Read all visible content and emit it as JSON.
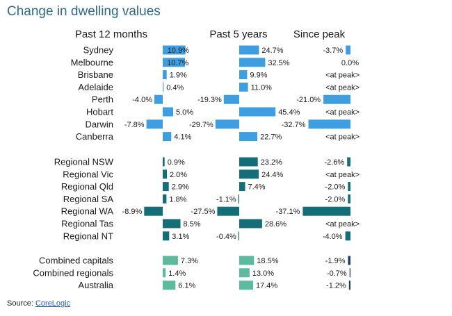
{
  "chart_data": {
    "type": "bar",
    "title": "Change in dwelling values",
    "series": [
      {
        "name": "Past 12 months"
      },
      {
        "name": "Past 5 years"
      },
      {
        "name": "Since peak"
      }
    ],
    "colors": {
      "capitals": "#3e9ee2",
      "regionals": "#146e78",
      "combined": "#5dbb9d",
      "since_peak_combined": "#1e3a6b"
    },
    "groups": [
      {
        "id": "capitals",
        "rows": [
          {
            "name": "Sydney",
            "v1": 10.9,
            "l1": "10.9%",
            "v2": 24.7,
            "l2": "24.7%",
            "v3": -3.7,
            "l3": "-3.7%"
          },
          {
            "name": "Melbourne",
            "v1": 10.7,
            "l1": "10.7%",
            "v2": 32.5,
            "l2": "32.5%",
            "v3": 0.0,
            "l3": "0.0%"
          },
          {
            "name": "Brisbane",
            "v1": 1.9,
            "l1": "1.9%",
            "v2": 9.9,
            "l2": "9.9%",
            "v3": null,
            "l3": "<at peak>"
          },
          {
            "name": "Adelaide",
            "v1": 0.4,
            "l1": "0.4%",
            "v2": 11.0,
            "l2": "11.0%",
            "v3": null,
            "l3": "<at peak>"
          },
          {
            "name": "Perth",
            "v1": -4.0,
            "l1": "-4.0%",
            "v2": -19.3,
            "l2": "-19.3%",
            "v3": -21.0,
            "l3": "-21.0%"
          },
          {
            "name": "Hobart",
            "v1": 5.0,
            "l1": "5.0%",
            "v2": 45.4,
            "l2": "45.4%",
            "v3": null,
            "l3": "<at peak>"
          },
          {
            "name": "Darwin",
            "v1": -7.8,
            "l1": "-7.8%",
            "v2": -29.7,
            "l2": "-29.7%",
            "v3": -32.7,
            "l3": "-32.7%"
          },
          {
            "name": "Canberra",
            "v1": 4.1,
            "l1": "4.1%",
            "v2": 22.7,
            "l2": "22.7%",
            "v3": null,
            "l3": "<at peak>"
          }
        ]
      },
      {
        "id": "regionals",
        "rows": [
          {
            "name": "Regional NSW",
            "v1": 0.9,
            "l1": "0.9%",
            "v2": 23.2,
            "l2": "23.2%",
            "v3": -2.6,
            "l3": "-2.6%"
          },
          {
            "name": "Regional Vic",
            "v1": 2.0,
            "l1": "2.0%",
            "v2": 24.4,
            "l2": "24.4%",
            "v3": null,
            "l3": "<at peak>"
          },
          {
            "name": "Regional Qld",
            "v1": 2.9,
            "l1": "2.9%",
            "v2": 7.4,
            "l2": "7.4%",
            "v3": -2.0,
            "l3": "-2.0%"
          },
          {
            "name": "Regional SA",
            "v1": 1.8,
            "l1": "1.8%",
            "v2": -1.1,
            "l2": "-1.1%",
            "v3": -2.0,
            "l3": "-2.0%"
          },
          {
            "name": "Regional WA",
            "v1": -8.9,
            "l1": "-8.9%",
            "v2": -27.5,
            "l2": "-27.5%",
            "v3": -37.1,
            "l3": "-37.1%"
          },
          {
            "name": "Regional Tas",
            "v1": 8.5,
            "l1": "8.5%",
            "v2": 28.6,
            "l2": "28.6%",
            "v3": null,
            "l3": "<at peak>"
          },
          {
            "name": "Regional NT",
            "v1": 3.1,
            "l1": "3.1%",
            "v2": -0.4,
            "l2": "-0.4%",
            "v3": -4.0,
            "l3": "-4.0%"
          }
        ]
      },
      {
        "id": "combined",
        "rows": [
          {
            "name": "Combined capitals",
            "v1": 7.3,
            "l1": "7.3%",
            "v2": 18.5,
            "l2": "18.5%",
            "v3": -1.9,
            "l3": "-1.9%"
          },
          {
            "name": "Combined regionals",
            "v1": 1.4,
            "l1": "1.4%",
            "v2": 13.0,
            "l2": "13.0%",
            "v3": -0.7,
            "l3": "-0.7%"
          },
          {
            "name": "Australia",
            "v1": 6.1,
            "l1": "6.1%",
            "v2": 17.4,
            "l2": "17.4%",
            "v3": -1.2,
            "l3": "-1.2%"
          }
        ]
      }
    ]
  },
  "source": {
    "label": "Source: ",
    "link": "CoreLogic"
  }
}
